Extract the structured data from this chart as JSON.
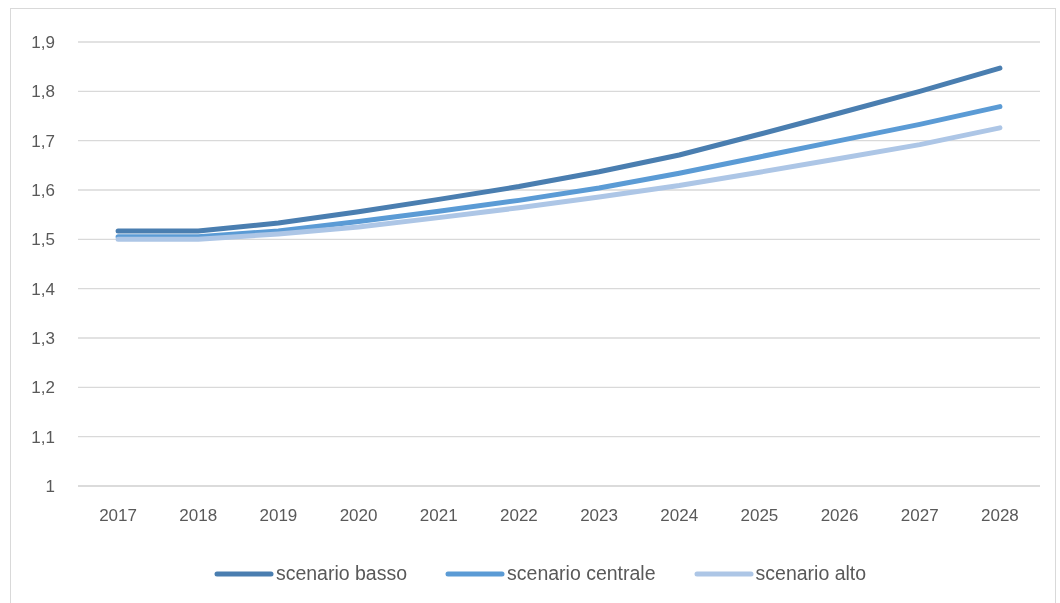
{
  "chart_data": {
    "type": "line",
    "categories": [
      "2017",
      "2018",
      "2019",
      "2020",
      "2021",
      "2022",
      "2023",
      "2024",
      "2025",
      "2026",
      "2027",
      "2028"
    ],
    "series": [
      {
        "name": "scenario basso",
        "color": "#4a7eb0",
        "values": [
          1.517,
          1.517,
          1.533,
          1.556,
          1.581,
          1.607,
          1.637,
          1.671,
          1.713,
          1.756,
          1.8,
          1.847
        ]
      },
      {
        "name": "scenario centrale",
        "color": "#5b9bd5",
        "values": [
          1.505,
          1.505,
          1.517,
          1.536,
          1.557,
          1.579,
          1.604,
          1.634,
          1.667,
          1.7,
          1.733,
          1.769
        ]
      },
      {
        "name": "scenario alto",
        "color": "#adc6e6",
        "values": [
          1.5,
          1.5,
          1.511,
          1.525,
          1.544,
          1.564,
          1.586,
          1.609,
          1.636,
          1.664,
          1.692,
          1.726
        ]
      }
    ],
    "ylim": [
      1,
      1.9
    ],
    "yticks": [
      1,
      {
        "value": 1.1,
        "label": "1,1"
      },
      {
        "value": 1.2,
        "label": "1,2"
      },
      {
        "value": 1.3,
        "label": "1,3"
      },
      {
        "value": 1.4,
        "label": "1,4"
      },
      {
        "value": 1.5,
        "label": "1,5"
      },
      {
        "value": 1.6,
        "label": "1,6"
      },
      {
        "value": 1.7,
        "label": "1,7"
      },
      {
        "value": 1.8,
        "label": "1,8"
      },
      {
        "value": 1.9,
        "label": "1,9"
      }
    ],
    "grid": "y",
    "legend": "bottom",
    "marker": "none",
    "line_style": "solid"
  }
}
